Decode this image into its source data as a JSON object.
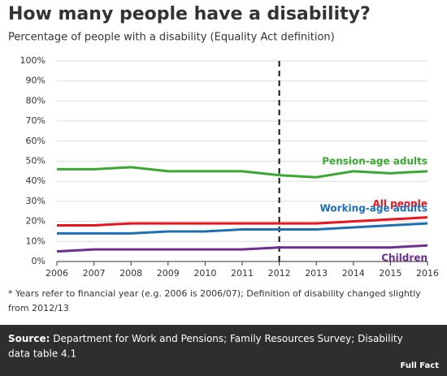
{
  "chart_data": {
    "type": "line",
    "title": "How many people have a disability?",
    "subtitle": "Percentage of people with a disability (Equality Act definition)",
    "x": [
      2006,
      2007,
      2008,
      2009,
      2010,
      2011,
      2012,
      2013,
      2014,
      2015,
      2016
    ],
    "xlim": [
      2006,
      2016
    ],
    "xticks": [
      2006,
      2007,
      2008,
      2009,
      2010,
      2011,
      2012,
      2013,
      2014,
      2015,
      2016
    ],
    "ylim": [
      0,
      100
    ],
    "yticks": [
      {
        "value": 0,
        "label": "0%"
      },
      {
        "value": 10,
        "label": "10%"
      },
      {
        "value": 20,
        "label": "20%"
      },
      {
        "value": 30,
        "label": "30%"
      },
      {
        "value": 40,
        "label": "40%"
      },
      {
        "value": 50,
        "label": "50%"
      },
      {
        "value": 60,
        "label": "60%"
      },
      {
        "value": 70,
        "label": "70%"
      },
      {
        "value": 80,
        "label": "80%"
      },
      {
        "value": 90,
        "label": "90%"
      },
      {
        "value": 100,
        "label": "100%"
      }
    ],
    "grid": true,
    "vline": 2012,
    "series": [
      {
        "name": "Pension-age adults",
        "color": "#3aa830",
        "values": [
          46,
          46,
          47,
          45,
          45,
          45,
          43,
          42,
          45,
          44,
          45
        ]
      },
      {
        "name": "All people",
        "color": "#e8141e",
        "values": [
          18,
          18,
          19,
          19,
          19,
          19,
          19,
          19,
          20,
          21,
          22
        ]
      },
      {
        "name": "Working-age adults",
        "color": "#1d6fb4",
        "values": [
          14,
          14,
          14,
          15,
          15,
          16,
          16,
          16,
          17,
          18,
          19
        ]
      },
      {
        "name": "Children",
        "color": "#6e2d91",
        "values": [
          5,
          6,
          6,
          6,
          6,
          6,
          7,
          7,
          7,
          7,
          8
        ]
      }
    ],
    "footnote": [
      "* Years refer to financial year (e.g. 2006 is 2006/07); Definition of disability changed slightly",
      "from 2012/13"
    ],
    "source_label": "Source:",
    "source": [
      "Department for Work and Pensions; Family Resources Survey; Disability",
      "data table 4.1"
    ],
    "logo": "Full Fact"
  }
}
